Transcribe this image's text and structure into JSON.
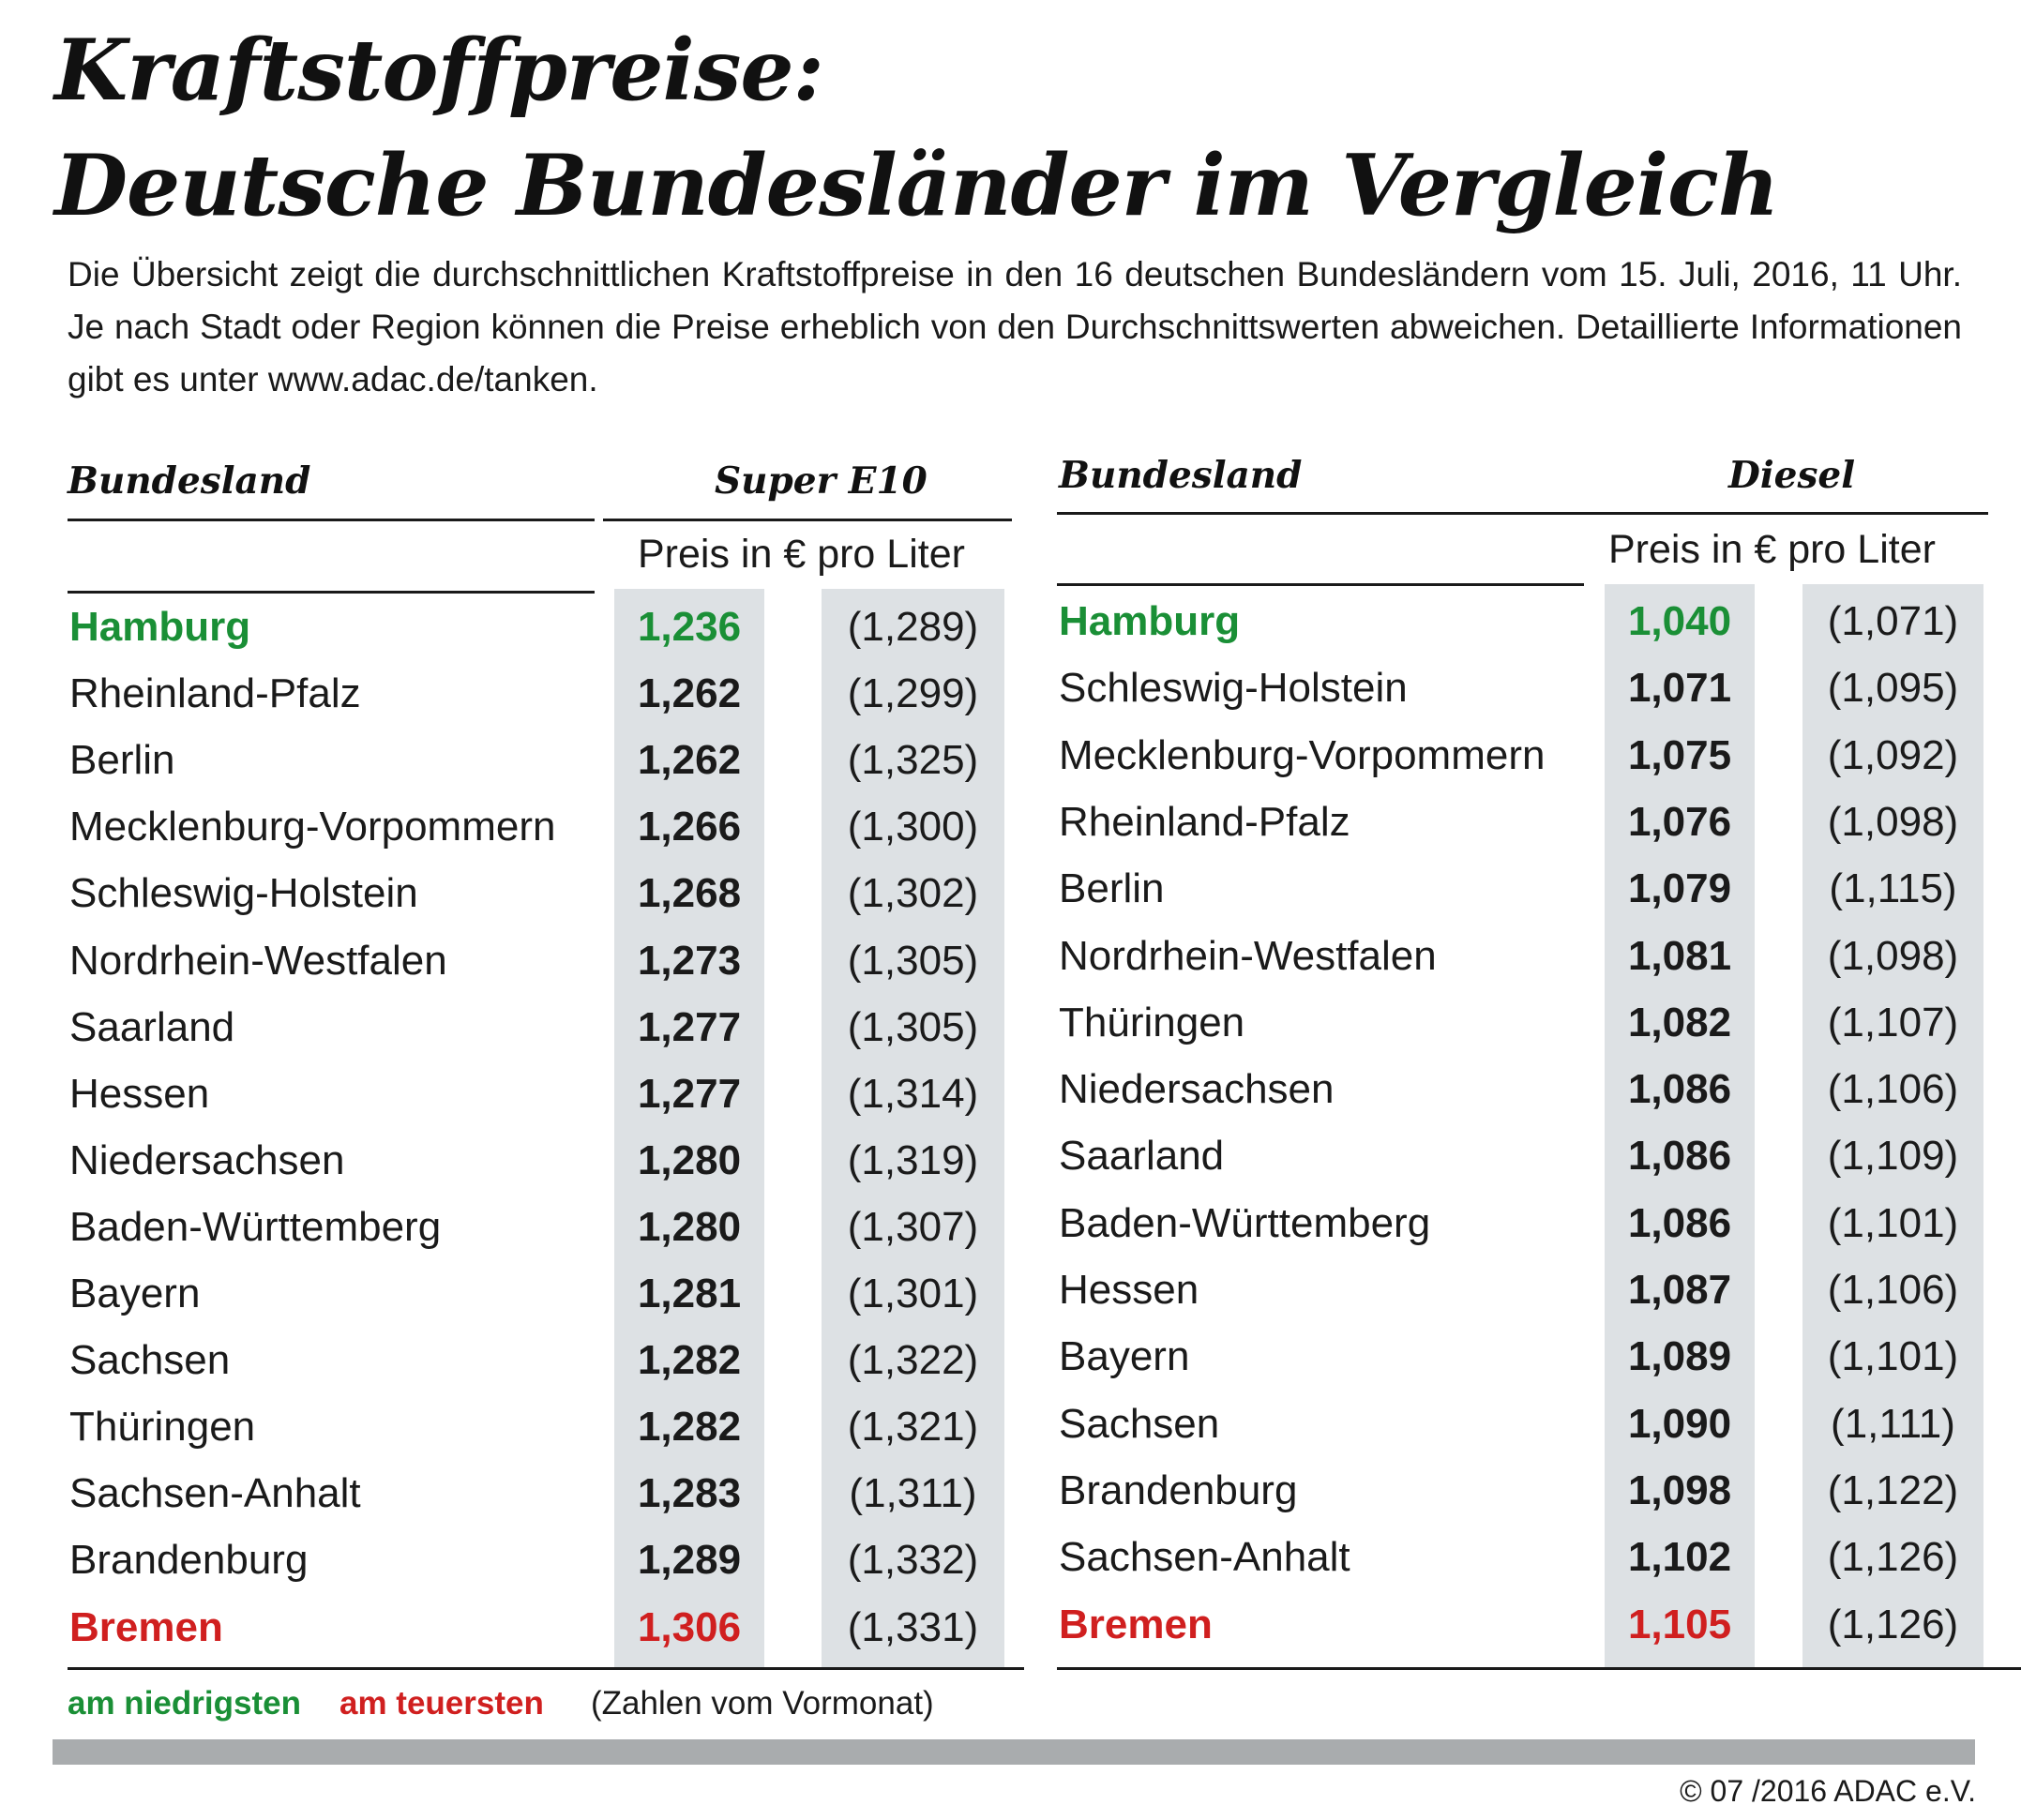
{
  "title": {
    "line1": "Kraftstoffpreise:",
    "line2": "Deutsche Bundesländer im Vergleich"
  },
  "intro": "Die Übersicht zeigt die durchschnittlichen Kraftstoffpreise in den 16 deutschen Bundesländern vom 15. Juli, 2016, 11 Uhr. Je nach Stadt oder Region können die Preise erheblich von den Durchschnittswerten abweichen. Detaillierte Informationen gibt es unter www.adac.de/tanken.",
  "tables": [
    {
      "state_header": "Bundesland",
      "fuel_header": "Super E10",
      "unit": "Preis in € pro Liter",
      "rows": [
        {
          "state": "Hamburg",
          "price": "1,236",
          "prev": "(1,289)",
          "mark": "low"
        },
        {
          "state": "Rheinland-Pfalz",
          "price": "1,262",
          "prev": "(1,299)",
          "mark": ""
        },
        {
          "state": "Berlin",
          "price": "1,262",
          "prev": "(1,325)",
          "mark": ""
        },
        {
          "state": "Mecklenburg-Vorpommern",
          "price": "1,266",
          "prev": "(1,300)",
          "mark": ""
        },
        {
          "state": "Schleswig-Holstein",
          "price": "1,268",
          "prev": "(1,302)",
          "mark": ""
        },
        {
          "state": "Nordrhein-Westfalen",
          "price": "1,273",
          "prev": "(1,305)",
          "mark": ""
        },
        {
          "state": "Saarland",
          "price": "1,277",
          "prev": "(1,305)",
          "mark": ""
        },
        {
          "state": "Hessen",
          "price": "1,277",
          "prev": "(1,314)",
          "mark": ""
        },
        {
          "state": "Niedersachsen",
          "price": "1,280",
          "prev": "(1,319)",
          "mark": ""
        },
        {
          "state": "Baden-Württemberg",
          "price": "1,280",
          "prev": "(1,307)",
          "mark": ""
        },
        {
          "state": "Bayern",
          "price": "1,281",
          "prev": "(1,301)",
          "mark": ""
        },
        {
          "state": "Sachsen",
          "price": "1,282",
          "prev": "(1,322)",
          "mark": ""
        },
        {
          "state": "Thüringen",
          "price": "1,282",
          "prev": "(1,321)",
          "mark": ""
        },
        {
          "state": "Sachsen-Anhalt",
          "price": "1,283",
          "prev": "(1,311)",
          "mark": ""
        },
        {
          "state": "Brandenburg",
          "price": "1,289",
          "prev": "(1,332)",
          "mark": ""
        },
        {
          "state": "Bremen",
          "price": "1,306",
          "prev": "(1,331)",
          "mark": "high"
        }
      ]
    },
    {
      "state_header": "Bundesland",
      "fuel_header": "Diesel",
      "unit": "Preis in € pro Liter",
      "rows": [
        {
          "state": "Hamburg",
          "price": "1,040",
          "prev": "(1,071)",
          "mark": "low"
        },
        {
          "state": "Schleswig-Holstein",
          "price": "1,071",
          "prev": "(1,095)",
          "mark": ""
        },
        {
          "state": "Mecklenburg-Vorpommern",
          "price": "1,075",
          "prev": "(1,092)",
          "mark": ""
        },
        {
          "state": "Rheinland-Pfalz",
          "price": "1,076",
          "prev": "(1,098)",
          "mark": ""
        },
        {
          "state": "Berlin",
          "price": "1,079",
          "prev": "(1,115)",
          "mark": ""
        },
        {
          "state": "Nordrhein-Westfalen",
          "price": "1,081",
          "prev": "(1,098)",
          "mark": ""
        },
        {
          "state": "Thüringen",
          "price": "1,082",
          "prev": "(1,107)",
          "mark": ""
        },
        {
          "state": "Niedersachsen",
          "price": "1,086",
          "prev": "(1,106)",
          "mark": ""
        },
        {
          "state": "Saarland",
          "price": "1,086",
          "prev": "(1,109)",
          "mark": ""
        },
        {
          "state": "Baden-Württemberg",
          "price": "1,086",
          "prev": "(1,101)",
          "mark": ""
        },
        {
          "state": "Hessen",
          "price": "1,087",
          "prev": "(1,106)",
          "mark": ""
        },
        {
          "state": "Bayern",
          "price": "1,089",
          "prev": "(1,101)",
          "mark": ""
        },
        {
          "state": "Sachsen",
          "price": "1,090",
          "prev": "(1,111)",
          "mark": ""
        },
        {
          "state": "Brandenburg",
          "price": "1,098",
          "prev": "(1,122)",
          "mark": ""
        },
        {
          "state": "Sachsen-Anhalt",
          "price": "1,102",
          "prev": "(1,126)",
          "mark": ""
        },
        {
          "state": "Bremen",
          "price": "1,105",
          "prev": "(1,126)",
          "mark": "high"
        }
      ]
    }
  ],
  "legend": {
    "lowest": "am niedrigsten",
    "highest": "am teuersten",
    "note": "(Zahlen vom Vormonat)"
  },
  "colors": {
    "lowest": "#1a8f36",
    "highest": "#d01f1f",
    "shade": "#dde1e4",
    "bar": "#a9acae"
  },
  "copyright": "© 07 /2016 ADAC e.V."
}
